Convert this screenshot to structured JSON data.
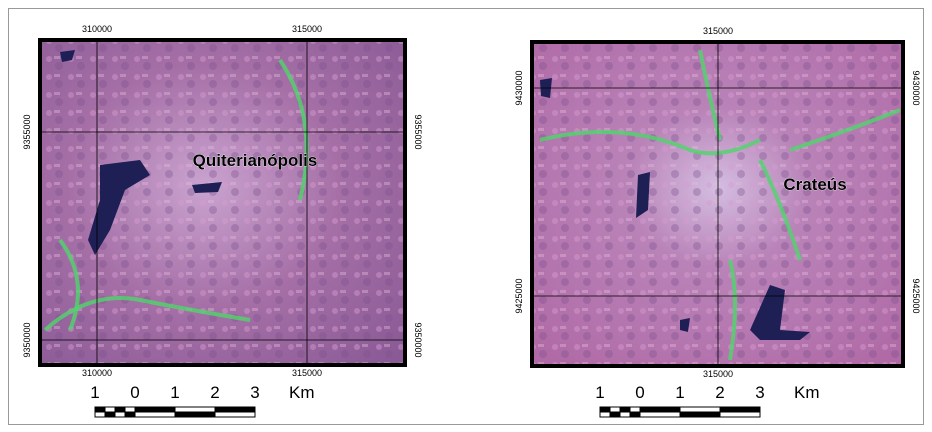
{
  "panels": [
    {
      "place_name": "Quiterianópolis",
      "top_labels": [
        "310000",
        "315000"
      ],
      "bottom_labels": [
        "310000",
        "315000"
      ],
      "left_labels": [
        "9355000",
        "9350000"
      ],
      "right_labels": [
        "9355000",
        "9350000"
      ],
      "scale_labels": [
        "1",
        "0",
        "1",
        "2",
        "3",
        "Km"
      ]
    },
    {
      "place_name": "Crateús",
      "top_labels": [
        "315000"
      ],
      "bottom_labels": [
        "315000"
      ],
      "left_labels": [
        "9430000",
        "9425000"
      ],
      "right_labels": [
        "9430000",
        "9425000"
      ],
      "scale_labels": [
        "1",
        "0",
        "1",
        "2",
        "3",
        "Km"
      ]
    }
  ]
}
